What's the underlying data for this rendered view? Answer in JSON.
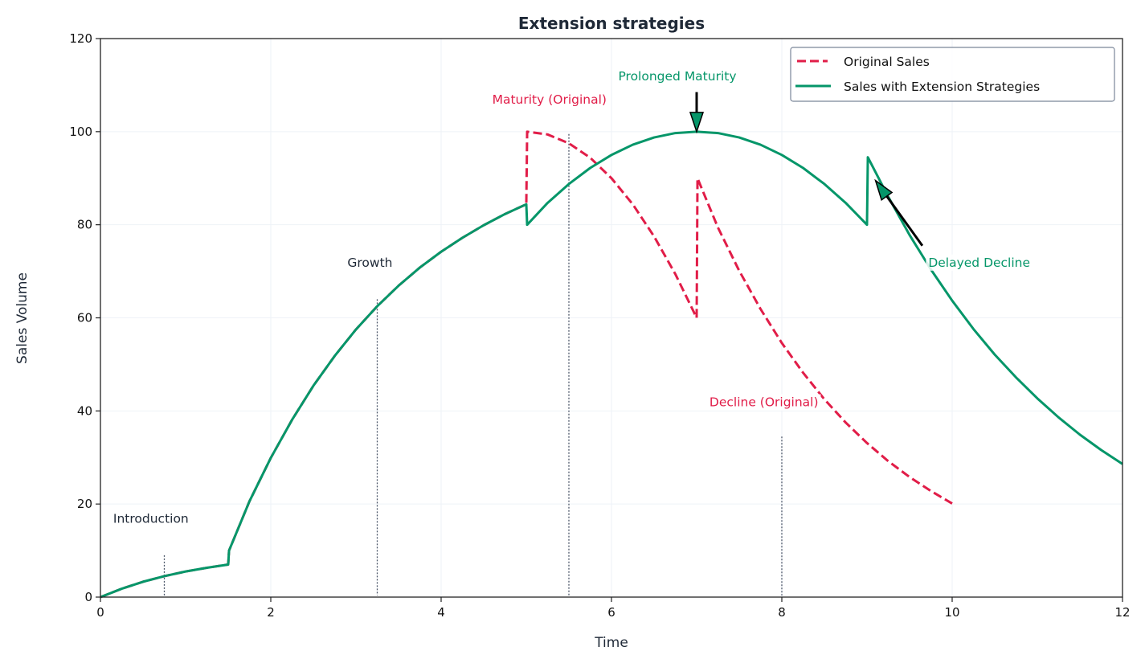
{
  "chart_data": {
    "type": "line",
    "title": "Extension strategies",
    "xlabel": "Time",
    "ylabel": "Sales Volume",
    "xlim": [
      0,
      12
    ],
    "ylim": [
      0,
      120
    ],
    "xticks": [
      0,
      2,
      4,
      6,
      8,
      10,
      12
    ],
    "yticks": [
      0,
      20,
      40,
      60,
      80,
      100,
      120
    ],
    "grid": true,
    "legend_position": "top-right",
    "series": [
      {
        "name": "Original Sales",
        "color": "#e11d48",
        "style": "dashed",
        "x": [
          0,
          0.25,
          0.5,
          0.75,
          1,
          1.25,
          1.5,
          1.51,
          1.75,
          2,
          2.25,
          2.5,
          2.75,
          3,
          3.25,
          3.5,
          3.75,
          4,
          4.25,
          4.5,
          4.75,
          5,
          5.01,
          5.25,
          5.5,
          5.75,
          6,
          6.25,
          6.5,
          6.75,
          7,
          7.01,
          7.25,
          7.5,
          7.75,
          8,
          8.25,
          8.5,
          8.75,
          9,
          9.25,
          9.5,
          9.75,
          10
        ],
        "y": [
          0,
          1.8,
          3.3,
          4.5,
          5.5,
          6.3,
          7.0,
          10,
          20.6,
          29.9,
          38.1,
          45.4,
          51.8,
          57.5,
          62.5,
          66.9,
          70.8,
          74.2,
          77.2,
          79.9,
          82.3,
          84.4,
          100,
          99.4,
          97.5,
          94.4,
          90,
          84.4,
          77.5,
          69.4,
          60,
          90,
          79.4,
          70.1,
          61.9,
          54.6,
          48.2,
          42.5,
          37.5,
          33.1,
          29.2,
          25.8,
          22.8,
          20.1
        ]
      },
      {
        "name": "Sales with Extension Strategies",
        "color": "#059669",
        "style": "solid",
        "x": [
          0,
          0.25,
          0.5,
          0.75,
          1,
          1.25,
          1.5,
          1.51,
          1.75,
          2,
          2.25,
          2.5,
          2.75,
          3,
          3.25,
          3.5,
          3.75,
          4,
          4.25,
          4.5,
          4.75,
          5,
          5.01,
          5.25,
          5.5,
          5.75,
          6,
          6.25,
          6.5,
          6.75,
          7,
          7.25,
          7.5,
          7.75,
          8,
          8.25,
          8.5,
          8.75,
          9,
          9.01,
          9.25,
          9.5,
          9.75,
          10,
          10.25,
          10.5,
          10.75,
          11,
          11.25,
          11.5,
          11.75,
          12
        ],
        "y": [
          0,
          1.8,
          3.3,
          4.5,
          5.5,
          6.3,
          7.0,
          10,
          20.6,
          29.9,
          38.1,
          45.4,
          51.8,
          57.5,
          62.5,
          66.9,
          70.8,
          74.2,
          77.2,
          79.9,
          82.3,
          84.4,
          80,
          84.7,
          88.75,
          92.2,
          95,
          97.2,
          98.75,
          99.7,
          100,
          99.7,
          98.75,
          97.2,
          95,
          92.2,
          88.75,
          84.7,
          80,
          94.5,
          86.0,
          77.8,
          70.4,
          63.7,
          57.6,
          52.1,
          47.2,
          42.7,
          38.6,
          34.9,
          31.6,
          28.6
        ]
      }
    ],
    "phase_markers": [
      {
        "x": 0.75,
        "y_top": 9
      },
      {
        "x": 3.25,
        "y_top": 64
      },
      {
        "x": 5.5,
        "y_top": 99.5
      },
      {
        "x": 8,
        "y_top": 34.5
      }
    ],
    "annotations": [
      {
        "text": "Introduction",
        "x": 0.15,
        "y": 16,
        "color": "#1f2937"
      },
      {
        "text": "Growth",
        "x": 2.9,
        "y": 71,
        "color": "#1f2937"
      },
      {
        "text": "Maturity (Original)",
        "x": 4.6,
        "y": 106,
        "color": "#e11d48"
      },
      {
        "text": "Prolonged Maturity",
        "x": 6.08,
        "y": 111,
        "color": "#059669",
        "arrow_from": [
          7,
          108.5
        ],
        "arrow_to": [
          7,
          100
        ]
      },
      {
        "text": "Decline (Original)",
        "x": 7.15,
        "y": 41,
        "color": "#e11d48"
      },
      {
        "text": "Delayed Decline",
        "x": 9.72,
        "y": 71,
        "color": "#059669",
        "arrow_from": [
          9.65,
          75.5
        ],
        "arrow_to": [
          9.1,
          89.5
        ]
      }
    ]
  }
}
